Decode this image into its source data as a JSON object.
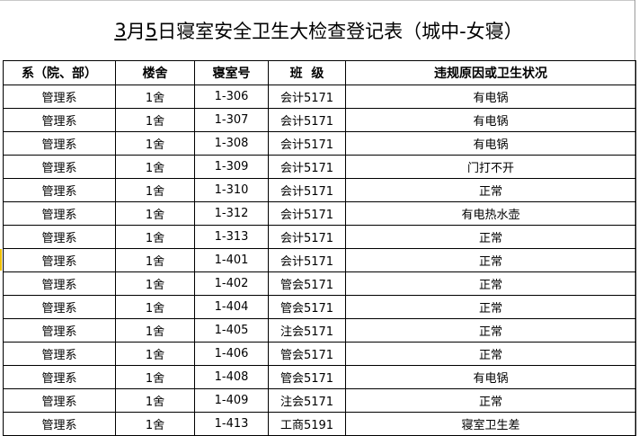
{
  "title": {
    "date_month": "3",
    "month_suffix": "月",
    "date_day": "5",
    "rest": "日寝室安全卫生大检查登记表（城中-女寝）"
  },
  "columns": [
    "系（院、部）",
    "楼舍",
    "寝室号",
    "班  级",
    "违规原因或卫生状况"
  ],
  "rows": [
    [
      "管理系",
      "1舍",
      "1-306",
      "会计5171",
      "有电锅"
    ],
    [
      "管理系",
      "1舍",
      "1-307",
      "会计5171",
      "有电锅"
    ],
    [
      "管理系",
      "1舍",
      "1-308",
      "会计5171",
      "有电锅"
    ],
    [
      "管理系",
      "1舍",
      "1-309",
      "会计5171",
      "门打不开"
    ],
    [
      "管理系",
      "1舍",
      "1-310",
      "会计5171",
      "正常"
    ],
    [
      "管理系",
      "1舍",
      "1-312",
      "会计5171",
      "有电热水壶"
    ],
    [
      "管理系",
      "1舍",
      "1-313",
      "会计5171",
      "正常"
    ],
    [
      "管理系",
      "1舍",
      "1-401",
      "会计5171",
      "正常"
    ],
    [
      "管理系",
      "1舍",
      "1-402",
      "管会5171",
      "正常"
    ],
    [
      "管理系",
      "1舍",
      "1-404",
      "管会5171",
      "正常"
    ],
    [
      "管理系",
      "1舍",
      "1-405",
      "注会5171",
      "正常"
    ],
    [
      "管理系",
      "1舍",
      "1-406",
      "管会5171",
      "正常"
    ],
    [
      "管理系",
      "1舍",
      "1-408",
      "管会5171",
      "有电锅"
    ],
    [
      "管理系",
      "1舍",
      "1-409",
      "注会5171",
      "正常"
    ],
    [
      "管理系",
      "1舍",
      "1-413",
      "工商5191",
      "寝室卫生差"
    ]
  ]
}
